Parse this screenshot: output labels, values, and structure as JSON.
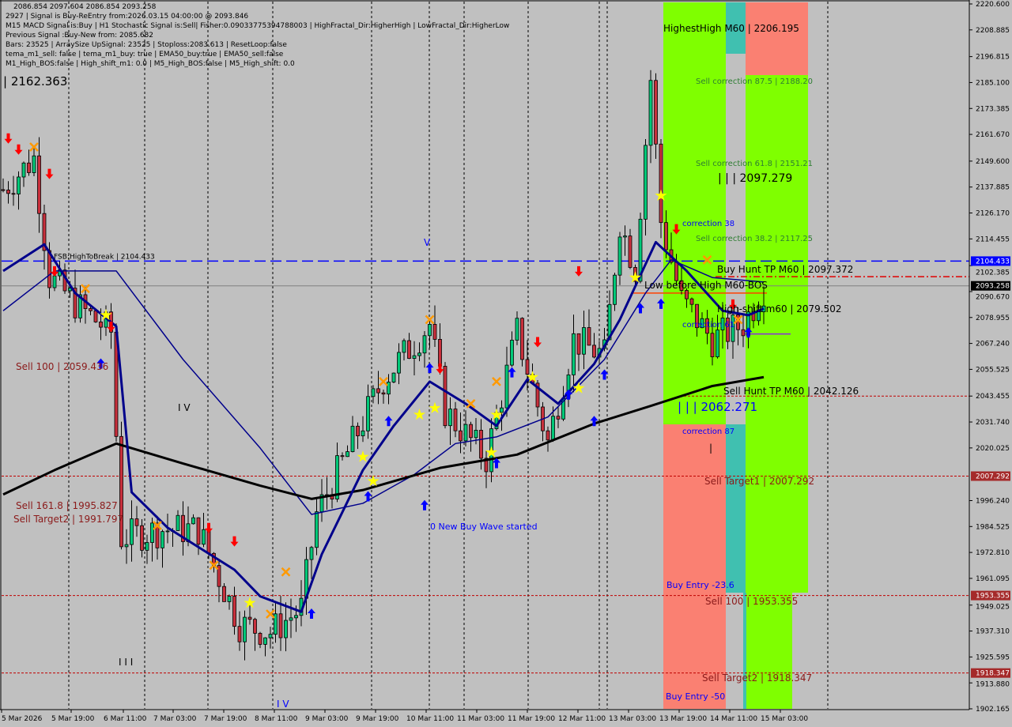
{
  "header": {
    "ohlc_line": "2086.854 2097.604 2086.854 2093.258",
    "overlay_text": "| 2162.363",
    "info_lines": [
      "2927 | Signal is Buy-ReEntry from:2026.03.15 04:00:00 @ 2093.846",
      "M15 MACD Signal is:Buy | H1 Stochastic Signal is:Sell| Fisher:0.09033775394788003 | HighFractal_Dir:HigherHigh | LowFractal_Dir:HigherLow",
      "Previous Signal :Buy-New from: 2085.682",
      "Bars: 23525 | ArraySize UpSignal: 23525 | Stoploss:2083.613 | ResetLoop:false",
      "tema_m1_sell: false | tema_m1_buy: true | EMA50_buy:true | EMA50_sell:false",
      "M1_High_BOS:false | High_shift_m1: 0.0 | M5_High_BOS:false | M5_High_shift: 0.0"
    ]
  },
  "colors": {
    "background": "#c0c0c0",
    "bull_candle": "#00c878",
    "bear_candle": "#c8303c",
    "zone_green": "#7fff00",
    "zone_red": "#fa8072",
    "zone_teal": "#40c0b0",
    "ema_black": "#000000",
    "ma_navy": "#00008b",
    "fsb_line": "#0000ff",
    "sell_label": "#8b1a1a",
    "buy_label": "#0000ff",
    "correction_label": "#2e7d32"
  },
  "chart_data": {
    "type": "candlestick",
    "ylim": [
      1902.165,
      2220.6
    ],
    "y_ticks": [
      "2220.600",
      "2208.885",
      "2196.815",
      "2185.100",
      "2173.385",
      "2161.670",
      "2149.600",
      "2137.885",
      "2126.170",
      "2114.455",
      "2102.385",
      "2090.670",
      "2078.955",
      "2067.240",
      "2055.525",
      "2043.455",
      "2031.740",
      "2020.025",
      "1996.240",
      "1984.525",
      "1972.810",
      "1961.095",
      "1949.025",
      "1937.310",
      "1925.595",
      "1913.880",
      "1902.165"
    ],
    "x_ticks": [
      "5 Mar 2026",
      "5 Mar 19:00",
      "6 Mar 11:00",
      "7 Mar 03:00",
      "7 Mar 19:00",
      "8 Mar 11:00",
      "9 Mar 03:00",
      "9 Mar 19:00",
      "10 Mar 11:00",
      "11 Mar 03:00",
      "11 Mar 19:00",
      "12 Mar 11:00",
      "13 Mar 03:00",
      "13 Mar 19:00",
      "14 Mar 11:00",
      "15 Mar 03:00"
    ],
    "price_badges": [
      {
        "value": "2104.433",
        "price": 2104.433,
        "color": "#0000ff"
      },
      {
        "value": "2093.258",
        "price": 2093.258,
        "color": "#000000"
      },
      {
        "value": "2007.292",
        "price": 2007.292,
        "color": "#a52a2a"
      },
      {
        "value": "1953.355",
        "price": 1953.355,
        "color": "#a52a2a"
      },
      {
        "value": "1918.347",
        "price": 1918.347,
        "color": "#a52a2a"
      }
    ],
    "close_path": [
      [
        0,
        2136.7
      ],
      [
        6,
        2151.0
      ],
      [
        9,
        2097.4
      ],
      [
        15,
        2083.1
      ],
      [
        21,
        2072.4
      ],
      [
        23,
        1979.6
      ],
      [
        31,
        1983.2
      ],
      [
        38,
        1983.2
      ],
      [
        46,
        1940.3
      ],
      [
        52,
        1936.8
      ],
      [
        58,
        1947.5
      ],
      [
        61,
        1990.3
      ],
      [
        68,
        2022.5
      ],
      [
        74,
        2051.0
      ],
      [
        83,
        2076.0
      ],
      [
        86,
        2036.7
      ],
      [
        94,
        2015.3
      ],
      [
        100,
        2072.4
      ],
      [
        106,
        2022.5
      ],
      [
        111,
        2068.9
      ],
      [
        117,
        2061.7
      ],
      [
        120,
        2122.4
      ],
      [
        123,
        2101.0
      ],
      [
        126,
        2186.7
      ],
      [
        128,
        2122.4
      ],
      [
        132,
        2086.7
      ],
      [
        138,
        2068.9
      ],
      [
        144,
        2076.0
      ],
      [
        148,
        2092.1
      ]
    ],
    "ema_long": [
      [
        0,
        1999
      ],
      [
        10,
        2010
      ],
      [
        22,
        2022
      ],
      [
        35,
        2013
      ],
      [
        50,
        2003
      ],
      [
        60,
        1997
      ],
      [
        70,
        2001
      ],
      [
        85,
        2011
      ],
      [
        100,
        2017
      ],
      [
        115,
        2031
      ],
      [
        126,
        2039
      ],
      [
        138,
        2048
      ],
      [
        148,
        2052
      ]
    ],
    "ma_fast": [
      [
        0,
        2100
      ],
      [
        8,
        2112
      ],
      [
        14,
        2090
      ],
      [
        22,
        2075
      ],
      [
        25,
        2000
      ],
      [
        32,
        1984
      ],
      [
        45,
        1965
      ],
      [
        50,
        1953
      ],
      [
        58,
        1946
      ],
      [
        62,
        1972
      ],
      [
        70,
        2010
      ],
      [
        76,
        2030
      ],
      [
        83,
        2050
      ],
      [
        90,
        2040
      ],
      [
        96,
        2030
      ],
      [
        102,
        2051
      ],
      [
        108,
        2040
      ],
      [
        115,
        2058
      ],
      [
        120,
        2078
      ],
      [
        124,
        2098
      ],
      [
        127,
        2113
      ],
      [
        133,
        2100
      ],
      [
        140,
        2082
      ],
      [
        145,
        2080
      ],
      [
        148,
        2083
      ]
    ],
    "ma_slow": [
      [
        0,
        2082
      ],
      [
        10,
        2100
      ],
      [
        22,
        2100
      ],
      [
        35,
        2060
      ],
      [
        50,
        2020
      ],
      [
        60,
        1990
      ],
      [
        70,
        1995
      ],
      [
        80,
        2008
      ],
      [
        88,
        2022
      ],
      [
        96,
        2025
      ],
      [
        106,
        2034
      ],
      [
        117,
        2060
      ],
      [
        125,
        2090
      ],
      [
        130,
        2105
      ],
      [
        138,
        2097
      ],
      [
        148,
        2095
      ]
    ],
    "levels": [
      {
        "price": 2104.433,
        "style": "fsb",
        "label": "FSB:HighToBreak | 2104.433"
      },
      {
        "price": 2093.258,
        "style": "bid"
      },
      {
        "price": 2043.455,
        "style": "reddot"
      },
      {
        "price": 2007.292,
        "style": "reddot"
      },
      {
        "price": 1953.355,
        "style": "reddot"
      },
      {
        "price": 1918.347,
        "style": "reddot"
      }
    ],
    "markers": [
      {
        "type": "down-arrow",
        "bar": 1,
        "price": 2160
      },
      {
        "type": "down-arrow",
        "bar": 3,
        "price": 2155
      },
      {
        "type": "cross",
        "bar": 6,
        "price": 2156
      },
      {
        "type": "down-arrow",
        "bar": 9,
        "price": 2144
      },
      {
        "type": "down-arrow",
        "bar": 10,
        "price": 2100
      },
      {
        "type": "cross",
        "bar": 16,
        "price": 2092
      },
      {
        "type": "star",
        "bar": 20,
        "price": 2080
      },
      {
        "type": "down-arrow",
        "bar": 21,
        "price": 2075
      },
      {
        "type": "up-arrow",
        "bar": 19,
        "price": 2058
      },
      {
        "type": "cross",
        "bar": 30,
        "price": 1985
      },
      {
        "type": "down-arrow",
        "bar": 40,
        "price": 1984
      },
      {
        "type": "down-arrow",
        "bar": 45,
        "price": 1978
      },
      {
        "type": "cross",
        "bar": 41,
        "price": 1967
      },
      {
        "type": "star",
        "bar": 48,
        "price": 1950
      },
      {
        "type": "cross",
        "bar": 52,
        "price": 1945
      },
      {
        "type": "cross",
        "bar": 55,
        "price": 1964
      },
      {
        "type": "up-arrow",
        "bar": 60,
        "price": 1945
      },
      {
        "type": "star",
        "bar": 70,
        "price": 2016
      },
      {
        "type": "star",
        "bar": 72,
        "price": 2005
      },
      {
        "type": "up-arrow",
        "bar": 71,
        "price": 1998
      },
      {
        "type": "up-arrow",
        "bar": 75,
        "price": 2032
      },
      {
        "type": "cross",
        "bar": 74,
        "price": 2050
      },
      {
        "type": "up-arrow",
        "bar": 82,
        "price": 1994
      },
      {
        "type": "star",
        "bar": 81,
        "price": 2035
      },
      {
        "type": "star",
        "bar": 84,
        "price": 2038
      },
      {
        "type": "cross",
        "bar": 83,
        "price": 2078
      },
      {
        "type": "up-arrow",
        "bar": 83,
        "price": 2056
      },
      {
        "type": "down-arrow",
        "bar": 85,
        "price": 2056
      },
      {
        "type": "cross",
        "bar": 91,
        "price": 2040
      },
      {
        "type": "star",
        "bar": 95,
        "price": 2018
      },
      {
        "type": "star",
        "bar": 96,
        "price": 2035
      },
      {
        "type": "up-arrow",
        "bar": 96,
        "price": 2013
      },
      {
        "type": "cross",
        "bar": 96,
        "price": 2050
      },
      {
        "type": "up-arrow",
        "bar": 99,
        "price": 2054
      },
      {
        "type": "star",
        "bar": 103,
        "price": 2052
      },
      {
        "type": "down-arrow",
        "bar": 104,
        "price": 2068
      },
      {
        "type": "up-arrow",
        "bar": 110,
        "price": 2044
      },
      {
        "type": "star",
        "bar": 112,
        "price": 2047
      },
      {
        "type": "up-arrow",
        "bar": 115,
        "price": 2032
      },
      {
        "type": "up-arrow",
        "bar": 117,
        "price": 2053
      },
      {
        "type": "down-arrow",
        "bar": 112,
        "price": 2100
      },
      {
        "type": "star",
        "bar": 123,
        "price": 2097
      },
      {
        "type": "up-arrow",
        "bar": 124,
        "price": 2083
      },
      {
        "type": "star",
        "bar": 128,
        "price": 2134
      },
      {
        "type": "down-arrow",
        "bar": 131,
        "price": 2119
      },
      {
        "type": "up-arrow",
        "bar": 128,
        "price": 2085
      },
      {
        "type": "cross",
        "bar": 137,
        "price": 2105
      },
      {
        "type": "down-arrow",
        "bar": 142,
        "price": 2085
      },
      {
        "type": "cross",
        "bar": 143,
        "price": 2078
      },
      {
        "type": "up-arrow",
        "bar": 145,
        "price": 2072
      }
    ]
  },
  "annotations": {
    "highest_high": "HighestHigh   M60 | 2206.195",
    "sell_corr_875": "Sell correction 87.5 | 2188.20",
    "sell_corr_618": "Sell correction 61.8 | 2151.21",
    "level_2097": "| | | 2097.279",
    "correction_38": "correction 38",
    "sell_corr_382": "Sell correction 38.2 | 2117.25",
    "buy_hunt_tp": "Buy Hunt TP M60 | 2097.372",
    "low_before_high": "Low before High   M60-BOS",
    "high_shift": "High-shift m60 | 2079.502",
    "correction_61": "correction 61",
    "sell_hunt_tp": "Sell Hunt TP M60 | 2042.126",
    "level_2062": "| | | 2062.271",
    "correction_87": "correction 87",
    "bar_mark": "|",
    "sell_target1": "Sell Target1 | 2007.292",
    "buy_entry_236": "Buy Entry -23.6",
    "sell_100_b": "Sell 100 | 1953.355",
    "sell_target2_b": "Sell Target2 | 1918.347",
    "buy_entry_50": "Buy Entry -50",
    "sell_100_a": "Sell 100 | 2059.436",
    "wave_iv_a": "I V",
    "sell_1618": "Sell 161.8 | 1995.827",
    "sell_target2_a": "Sell Target2 | 1991.797",
    "wave_iii": "I I I",
    "wave_iv_b": "I V",
    "wave_v": "V",
    "new_buy_wave": "0 New Buy Wave started"
  }
}
